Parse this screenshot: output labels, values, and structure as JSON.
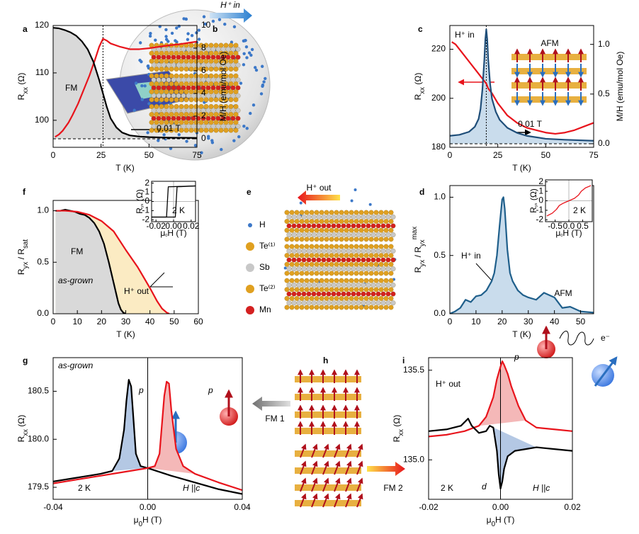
{
  "chart_data": [
    {
      "panel": "a",
      "type": "line",
      "xlabel": [
        "T (K)"
      ],
      "ylabel": [
        "R",
        {
          "text": "xx",
          "pos": "sub"
        },
        " (Ω)"
      ],
      "y2label": [
        "M/H (emu/mol Oe)"
      ],
      "xlim": [
        0,
        75
      ],
      "ylim": [
        94.3,
        120
      ],
      "y2lim": [
        -0.75,
        10
      ],
      "xticks": [
        0,
        25,
        50,
        75
      ],
      "yticks": [
        100,
        110,
        120
      ],
      "y2ticks": [
        0,
        2,
        4,
        6,
        8,
        10
      ],
      "marker_x": 26,
      "annotations": [
        "FM",
        "0.01 T"
      ],
      "series": [
        {
          "color": "#e8141c",
          "x": [
            1,
            3,
            5,
            8,
            10,
            13,
            16,
            19,
            22,
            24,
            26,
            28,
            30,
            35,
            40,
            45,
            50,
            55,
            60,
            65,
            70,
            75
          ],
          "values": [
            96.5,
            97,
            97.8,
            99.5,
            101,
            103.5,
            106.5,
            109.5,
            113,
            115.5,
            117.2,
            116.8,
            116.2,
            115.5,
            115.0,
            115.0,
            115.2,
            115.5,
            115.8,
            116.0,
            116.3,
            116.6
          ]
        },
        {
          "color": "#000000",
          "axis": "y2",
          "x": [
            0,
            3,
            6,
            9,
            12,
            15,
            18,
            21,
            24,
            26,
            28,
            30,
            33,
            36,
            40,
            45,
            50,
            60,
            75
          ],
          "values": [
            9.8,
            9.75,
            9.6,
            9.4,
            9.1,
            8.6,
            7.9,
            6.8,
            5.2,
            4.0,
            2.8,
            1.8,
            1.0,
            0.55,
            0.3,
            0.2,
            0.15,
            0.1,
            0.08
          ]
        }
      ]
    },
    {
      "panel": "c",
      "type": "line",
      "xlabel": [
        "T (K)"
      ],
      "ylabel": [
        "R",
        {
          "text": "xx",
          "pos": "sub"
        },
        " (Ω)"
      ],
      "y2label": [
        "M/H (emu/mol Oe)"
      ],
      "xlim": [
        0,
        75
      ],
      "ylim": [
        180,
        229.7
      ],
      "y2lim": [
        -0.036,
        1.19
      ],
      "xticks": [
        0,
        25,
        50,
        75
      ],
      "yticks": [
        180,
        200,
        220
      ],
      "y2ticks": [
        {
          "value": 0,
          "label": "0.0"
        },
        {
          "value": 0.5,
          "label": "0.5"
        },
        {
          "value": 1,
          "label": "1.0"
        }
      ],
      "marker_x": 19,
      "annotations": [
        "H⁺ in",
        "AFM",
        "0.01 T"
      ],
      "series": [
        {
          "color": "#e8141c",
          "x": [
            1,
            3,
            5,
            8,
            10,
            12,
            14,
            16,
            18,
            19,
            20,
            22,
            25,
            28,
            30,
            35,
            40,
            45,
            50,
            55,
            60,
            65,
            70,
            75
          ],
          "values": [
            223,
            222,
            220,
            217,
            215,
            213,
            211,
            209,
            207,
            206,
            204,
            202,
            198,
            195,
            193,
            190,
            188,
            187,
            186,
            185.5,
            186,
            187,
            188.5,
            190
          ]
        },
        {
          "color": "#1f4e79",
          "axis": "y2",
          "x": [
            0,
            5,
            10,
            13,
            15,
            16,
            17,
            18,
            18.5,
            19,
            19.5,
            20,
            21,
            22,
            24,
            26,
            30,
            35,
            40,
            50,
            60,
            75
          ],
          "values": [
            0.08,
            0.09,
            0.12,
            0.17,
            0.25,
            0.35,
            0.55,
            0.85,
            1.05,
            1.15,
            1.05,
            0.85,
            0.6,
            0.45,
            0.32,
            0.24,
            0.16,
            0.11,
            0.08,
            0.05,
            0.04,
            0.03
          ]
        }
      ]
    },
    {
      "panel": "f",
      "type": "line",
      "xlabel": [
        "T (K)"
      ],
      "ylabel": [
        "R",
        {
          "text": "yx",
          "pos": "sub"
        },
        " / R",
        {
          "text": "sat",
          "pos": "sub"
        }
      ],
      "xlim": [
        0,
        60
      ],
      "ylim": [
        0,
        1.1
      ],
      "xticks": [
        0,
        10,
        20,
        30,
        40,
        50,
        60
      ],
      "yticks": [
        {
          "value": 0,
          "label": "0.0"
        },
        {
          "value": 0.5,
          "label": "0.5"
        },
        {
          "value": 1,
          "label": "1.0"
        }
      ],
      "annotations": [
        "FM",
        "as-grown",
        "H⁺ out"
      ],
      "series": [
        {
          "name": "as-grown",
          "color": "#000000",
          "x": [
            1,
            3,
            5,
            7,
            9,
            11,
            13,
            15,
            17,
            19,
            21,
            23,
            25,
            27,
            28,
            29,
            30
          ],
          "values": [
            1.0,
            1.0,
            1.01,
            1.0,
            0.99,
            0.97,
            0.96,
            0.93,
            0.88,
            0.8,
            0.68,
            0.5,
            0.3,
            0.1,
            0.04,
            0.01,
            0
          ]
        },
        {
          "name": "H⁺ out",
          "color": "#e8141c",
          "x": [
            1,
            5,
            10,
            15,
            20,
            25,
            30,
            35,
            40,
            43,
            45,
            47,
            48
          ],
          "values": [
            1.0,
            1.0,
            0.99,
            0.96,
            0.9,
            0.8,
            0.62,
            0.45,
            0.25,
            0.12,
            0.05,
            0.01,
            0
          ]
        }
      ]
    },
    {
      "type": "line",
      "xlabel": [
        "μ",
        {
          "text": "0",
          "pos": "sub"
        },
        "H (T)"
      ],
      "ylabel": [
        "R",
        {
          "text": "yx",
          "pos": "sub"
        },
        " (Ω)"
      ],
      "xlim": [
        -0.025,
        0.025
      ],
      "ylim": [
        -2.2,
        2.2
      ],
      "xticks": [
        {
          "value": -0.02,
          "label": "-0.02"
        },
        {
          "value": 0,
          "label": "0.00"
        },
        {
          "value": 0.02,
          "label": "0.02"
        }
      ],
      "yticks": [
        -2,
        -1,
        0,
        1,
        2
      ],
      "annotations": [
        "2 K"
      ],
      "series": [
        {
          "color": "#000000",
          "x": [
            -0.025,
            0.002,
            0.003,
            0.004,
            0.025
          ],
          "values": [
            -1.7,
            -1.7,
            0,
            1.6,
            1.7
          ]
        },
        {
          "color": "#000000",
          "x": [
            0.025,
            -0.006,
            -0.007,
            -0.008,
            -0.025
          ],
          "values": [
            1.7,
            1.6,
            0,
            -1.7,
            -1.7
          ]
        }
      ]
    },
    {
      "panel": "d",
      "type": "line",
      "xlabel": [
        "T (K)"
      ],
      "ylabel": [
        "R",
        {
          "text": "yx",
          "pos": "sub"
        },
        " / R",
        {
          "text": "yx",
          "pos": "sub"
        },
        {
          "text": "max",
          "pos": "sup"
        }
      ],
      "xlim": [
        0,
        55
      ],
      "ylim": [
        0,
        1.1
      ],
      "xticks": [
        0,
        10,
        20,
        30,
        40,
        50
      ],
      "yticks": [
        {
          "value": 0,
          "label": "0.0"
        },
        {
          "value": 0.5,
          "label": "0.5"
        },
        {
          "value": 1,
          "label": "1.0"
        }
      ],
      "annotations": [
        "H⁺ in",
        "AFM"
      ],
      "series": [
        {
          "color": "#1f5f8b",
          "x": [
            0,
            2,
            4,
            6,
            8,
            10,
            12,
            14,
            16,
            17,
            18,
            19,
            20,
            20.5,
            21,
            22,
            23,
            24,
            26,
            28,
            30,
            33,
            36,
            40,
            43,
            46,
            50,
            55
          ],
          "values": [
            0,
            0.02,
            0.05,
            0.12,
            0.1,
            0.15,
            0.16,
            0.2,
            0.28,
            0.35,
            0.5,
            0.75,
            0.98,
            1.0,
            0.9,
            0.55,
            0.35,
            0.28,
            0.2,
            0.16,
            0.14,
            0.12,
            0.18,
            0.14,
            0.05,
            0.06,
            0.02,
            0.01
          ]
        }
      ]
    },
    {
      "type": "line",
      "xlabel": [
        "μ",
        {
          "text": "0",
          "pos": "sub"
        },
        "H (T)"
      ],
      "ylabel": [
        "R",
        {
          "text": "yx",
          "pos": "sub"
        },
        " (Ω)"
      ],
      "xlim": [
        -0.85,
        0.85
      ],
      "ylim": [
        -2.2,
        2.2
      ],
      "xticks": [
        {
          "value": -0.5,
          "label": "-0.5"
        },
        {
          "value": 0,
          "label": "0.0"
        },
        {
          "value": 0.5,
          "label": "0.5"
        }
      ],
      "yticks": [
        -2,
        -1,
        0,
        1,
        2
      ],
      "annotations": [
        "2 K"
      ],
      "series": [
        {
          "color": "#e8141c",
          "x": [
            -0.8,
            -0.6,
            -0.45,
            -0.35,
            -0.2,
            0,
            0.2,
            0.35,
            0.45,
            0.6,
            0.8
          ],
          "values": [
            -1.6,
            -1.3,
            -0.9,
            -0.5,
            -0.25,
            0,
            0.25,
            0.6,
            1.0,
            1.35,
            1.6
          ]
        }
      ]
    },
    {
      "panel": "g",
      "type": "line",
      "xlabel": [
        "μ",
        {
          "text": "0",
          "pos": "sub"
        },
        "H (T)"
      ],
      "ylabel": [
        "R",
        {
          "text": "xx",
          "pos": "sub"
        },
        " (Ω)"
      ],
      "xlim": [
        -0.04,
        0.04
      ],
      "ylim": [
        179.375,
        180.85
      ],
      "xticks": [
        {
          "value": -0.04,
          "label": "-0.04"
        },
        {
          "value": 0,
          "label": "0.00"
        },
        {
          "value": 0.04,
          "label": "0.04"
        }
      ],
      "yticks": [
        179.5,
        {
          "value": 180,
          "label": "180.0"
        },
        180.5
      ],
      "annotations": [
        "as-grown",
        "p",
        "p",
        "2 K",
        "H ||c"
      ],
      "series": [
        {
          "color": "#000000",
          "x": [
            -0.04,
            -0.03,
            -0.02,
            -0.015,
            -0.012,
            -0.01,
            -0.009,
            -0.008,
            -0.007,
            -0.006,
            -0.005,
            -0.003,
            0,
            0.01,
            0.02,
            0.03,
            0.04
          ],
          "values": [
            179.56,
            179.6,
            179.64,
            179.67,
            179.8,
            180.1,
            180.4,
            180.62,
            180.55,
            180.2,
            179.85,
            179.72,
            179.7,
            179.62,
            179.55,
            179.48,
            179.43
          ]
        },
        {
          "color": "#e8141c",
          "x": [
            -0.04,
            -0.03,
            -0.02,
            -0.01,
            0,
            0.003,
            0.005,
            0.006,
            0.007,
            0.008,
            0.009,
            0.01,
            0.012,
            0.015,
            0.02,
            0.03,
            0.04
          ],
          "values": [
            179.54,
            179.58,
            179.62,
            179.66,
            179.7,
            179.72,
            179.85,
            180.15,
            180.45,
            180.6,
            180.58,
            180.3,
            179.9,
            179.72,
            179.64,
            179.55,
            179.47
          ]
        }
      ]
    },
    {
      "panel": "i",
      "type": "line",
      "xlabel": [
        "μ",
        {
          "text": "0",
          "pos": "sub"
        },
        "H (T)"
      ],
      "ylabel": [
        "R",
        {
          "text": "xx",
          "pos": "sub"
        },
        " (Ω)"
      ],
      "xlim": [
        -0.02,
        0.02
      ],
      "ylim": [
        134.78,
        135.57
      ],
      "xticks": [
        {
          "value": -0.02,
          "label": "-0.02"
        },
        {
          "value": 0,
          "label": "0.00"
        },
        {
          "value": 0.02,
          "label": "0.02"
        }
      ],
      "yticks": [
        {
          "value": 135,
          "label": "135.0"
        },
        135.5
      ],
      "annotations": [
        "H⁺ out",
        "p",
        "d",
        "2 K",
        "H ||c",
        "e⁻"
      ],
      "series": [
        {
          "color": "#e8141c",
          "x": [
            -0.02,
            -0.015,
            -0.01,
            -0.006,
            -0.004,
            -0.002,
            -0.001,
            0,
            0.0005,
            0.001,
            0.002,
            0.003,
            0.005,
            0.007,
            0.01,
            0.015,
            0.02
          ],
          "values": [
            135.13,
            135.14,
            135.16,
            135.19,
            135.24,
            135.35,
            135.45,
            135.52,
            135.55,
            135.53,
            135.48,
            135.41,
            135.3,
            135.22,
            135.18,
            135.17,
            135.16
          ]
        },
        {
          "color": "#000000",
          "x": [
            -0.02,
            -0.015,
            -0.011,
            -0.009,
            -0.008,
            -0.006,
            -0.004,
            -0.003,
            -0.002,
            -0.001,
            -0.0005,
            0,
            0.0005,
            0.001,
            0.002,
            0.004,
            0.007,
            0.01,
            0.015,
            0.02
          ],
          "values": [
            135.16,
            135.17,
            135.19,
            135.23,
            135.19,
            135.15,
            135.16,
            135.19,
            135.18,
            135.05,
            134.92,
            134.84,
            134.88,
            134.95,
            135.02,
            135.05,
            135.06,
            135.07,
            135.06,
            135.05
          ]
        }
      ]
    }
  ],
  "schematics": [
    {
      "panel": "b",
      "labels": [
        "H⁺ in"
      ]
    },
    {
      "panel": "e",
      "labels": [
        "H⁺ out"
      ],
      "legend": [
        "H",
        "Te⁽¹⁾",
        "Sb",
        "Te⁽²⁾",
        "Mn"
      ]
    },
    {
      "panel": "h",
      "labels": [
        "FM 1",
        "FM 2"
      ]
    }
  ]
}
